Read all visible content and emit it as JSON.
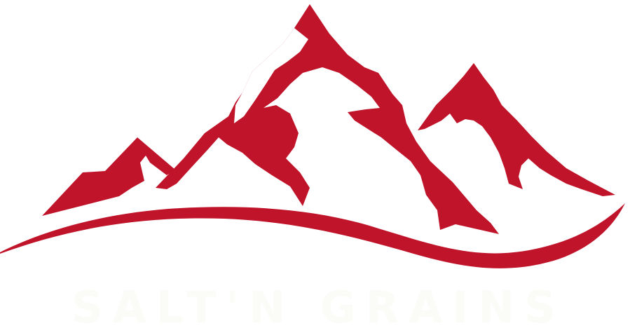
{
  "logo": {
    "wordmark": "SALT'N GRAINS",
    "brand_color": "#c0142a",
    "wordmark_color": "#fbfbf8",
    "background": "#ffffff",
    "icon": "mountain-range-icon"
  }
}
